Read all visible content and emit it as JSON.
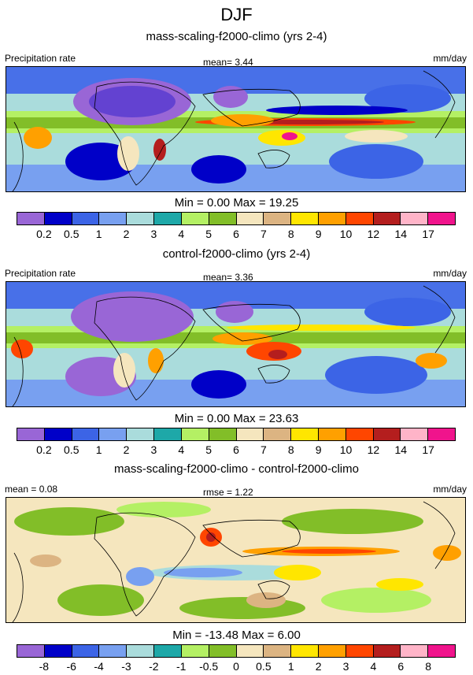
{
  "title": "DJF",
  "palette_abs": [
    "#9966d6",
    "#0000c8",
    "#3c64e6",
    "#78a0f0",
    "#aadcdc",
    "#1ea8a8",
    "#b4f064",
    "#82be28",
    "#f5e6be",
    "#dcb482",
    "#ffe600",
    "#ffa000",
    "#ff4600",
    "#b41e1e",
    "#ffb4c8",
    "#f0148c"
  ],
  "palette_diff": [
    "#9966d6",
    "#0000c8",
    "#3c64e6",
    "#78a0f0",
    "#aadcdc",
    "#1ea8a8",
    "#b4f064",
    "#82be28",
    "#f5e6be",
    "#dcb482",
    "#ffe600",
    "#ffa000",
    "#ff4600",
    "#b41e1e",
    "#ffb4c8",
    "#f0148c"
  ],
  "panels": [
    {
      "title": "mass-scaling-f2000-climo (yrs 2-4)",
      "left_label": "Precipitation rate",
      "center_label": "mean=   3.44",
      "right_label": "mm/day",
      "minmax": "Min =   0.00 Max =  19.25",
      "ticks": [
        "0.2",
        "0.5",
        "1",
        "2",
        "3",
        "4",
        "5",
        "6",
        "7",
        "8",
        "9",
        "10",
        "12",
        "14",
        "17"
      ]
    },
    {
      "title": "control-f2000-climo (yrs 2-4)",
      "left_label": "Precipitation rate",
      "center_label": "mean=   3.36",
      "right_label": "mm/day",
      "minmax": "Min =   0.00 Max =  23.63",
      "ticks": [
        "0.2",
        "0.5",
        "1",
        "2",
        "3",
        "4",
        "5",
        "6",
        "7",
        "8",
        "9",
        "10",
        "12",
        "14",
        "17"
      ]
    },
    {
      "title": "mass-scaling-f2000-climo - control-f2000-climo",
      "left_label": "mean =   0.08",
      "center_label": "rmse =   1.22",
      "right_label": "mm/day",
      "minmax": "Min = -13.48 Max =   6.00",
      "ticks": [
        "-8",
        "-6",
        "-4",
        "-3",
        "-2",
        "-1",
        "-0.5",
        "0",
        "0.5",
        "1",
        "2",
        "3",
        "4",
        "6",
        "8"
      ]
    }
  ]
}
